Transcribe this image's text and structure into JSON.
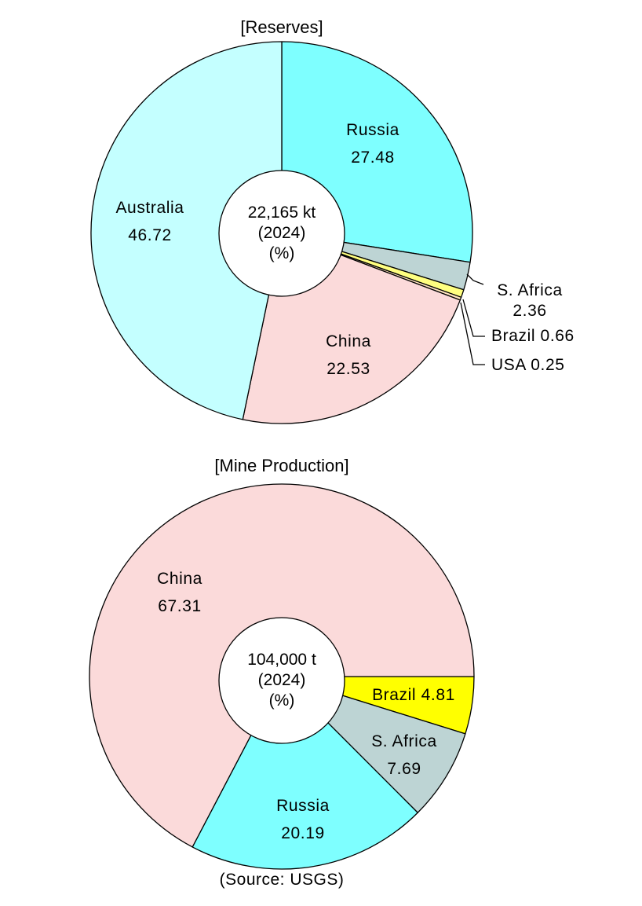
{
  "chart_data": [
    {
      "type": "pie",
      "title": "[Reserves]",
      "center_text": [
        "22,165 kt",
        "(2024)",
        "(%)"
      ],
      "colors": [
        "#7EFFFF",
        "#BDD4D4",
        "#FFFF80",
        "#FFE4C0",
        "#FBDADA",
        "#C4FFFF"
      ],
      "slices": [
        {
          "name": "Russia",
          "value": 27.48
        },
        {
          "name": "S. Africa",
          "value": 2.36
        },
        {
          "name": "Brazil",
          "value": 0.66
        },
        {
          "name": "USA",
          "value": 0.25
        },
        {
          "name": "China",
          "value": 22.53
        },
        {
          "name": "Australia",
          "value": 46.72
        }
      ]
    },
    {
      "type": "pie",
      "title": "[Mine Production]",
      "center_text": [
        "104,000 t",
        "(2024)",
        "(%)"
      ],
      "colors": [
        "#FFFF00",
        "#BDD4D4",
        "#7EFFFF",
        "#FBDADA"
      ],
      "slices": [
        {
          "name": "Brazil",
          "value": 4.81
        },
        {
          "name": "S. Africa",
          "value": 7.69
        },
        {
          "name": "Russia",
          "value": 20.19
        },
        {
          "name": "China",
          "value": 67.31
        }
      ]
    }
  ],
  "source": "(Source: USGS)"
}
